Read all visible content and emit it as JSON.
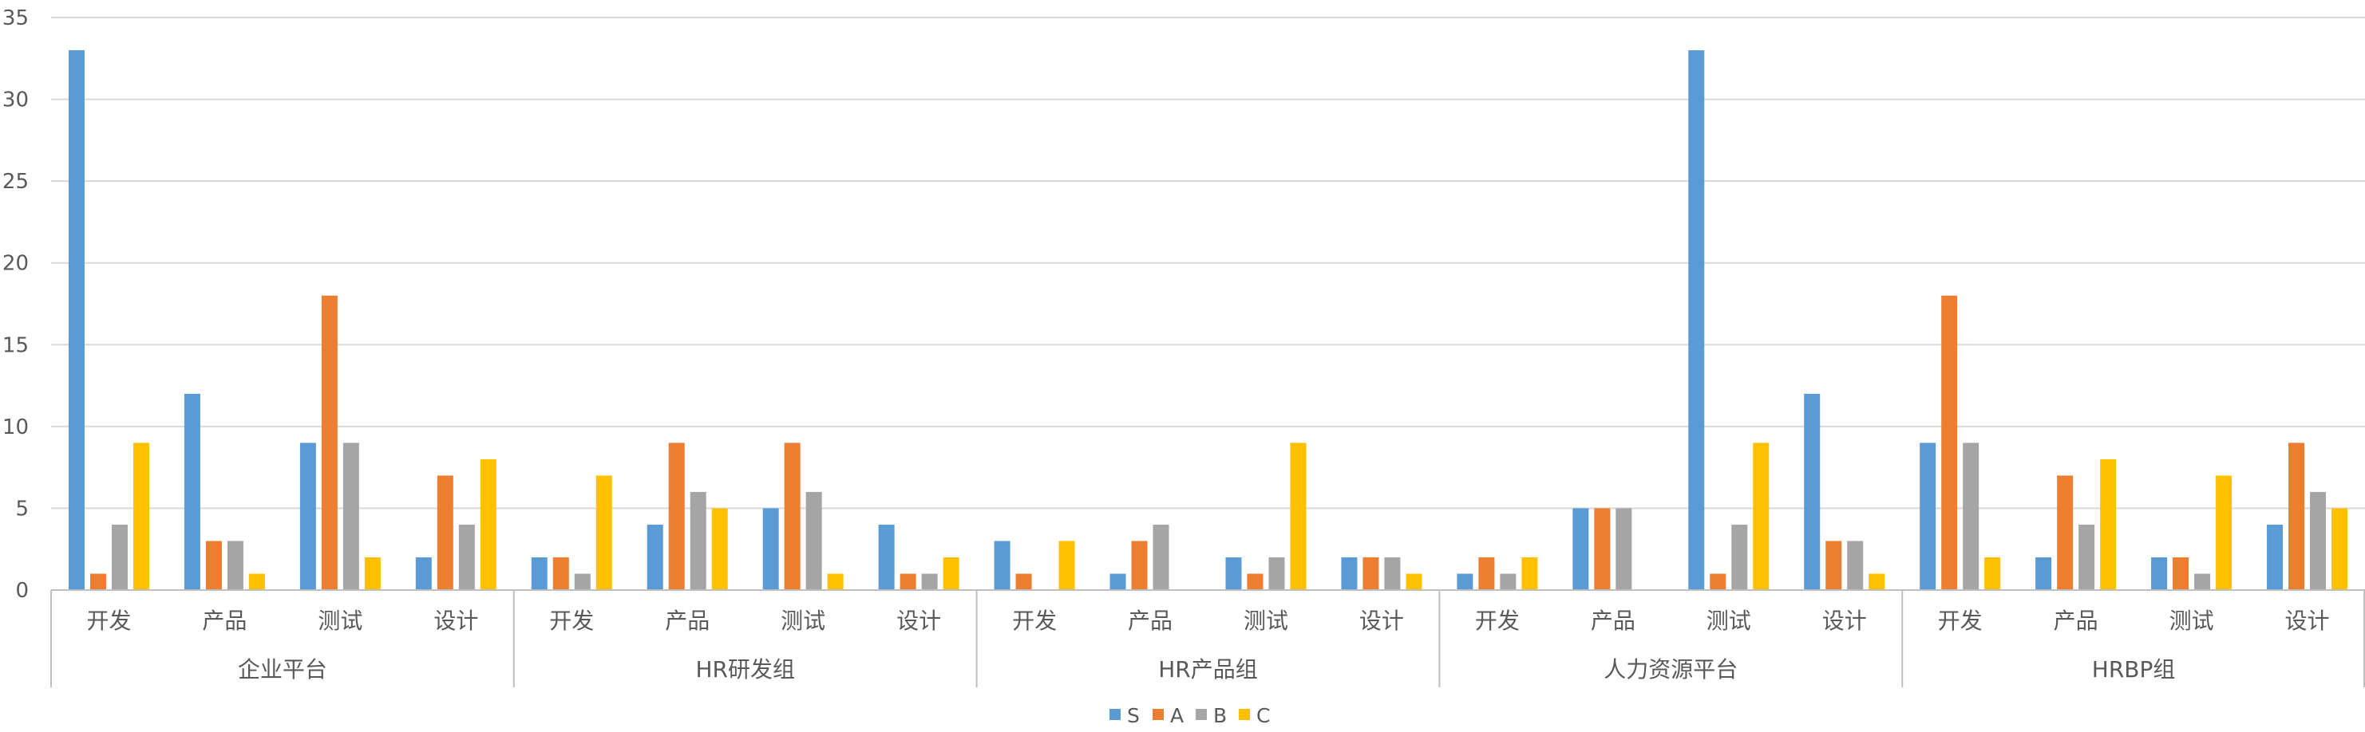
{
  "chart_data": {
    "type": "bar",
    "title": "",
    "xlabel": "",
    "ylabel": "",
    "ylim": [
      0,
      35
    ],
    "yticks": [
      0,
      5,
      10,
      15,
      20,
      25,
      30,
      35
    ],
    "grid": true,
    "legend_position": "bottom",
    "groups": [
      {
        "name": "企业平台",
        "categories": [
          "开发",
          "产品",
          "测试",
          "设计"
        ]
      },
      {
        "name": "HR研发组",
        "categories": [
          "开发",
          "产品",
          "测试",
          "设计"
        ]
      },
      {
        "name": "HR产品组",
        "categories": [
          "开发",
          "产品",
          "测试",
          "设计"
        ]
      },
      {
        "name": "人力资源平台",
        "categories": [
          "开发",
          "产品",
          "测试",
          "设计"
        ]
      },
      {
        "name": "HRBP组",
        "categories": [
          "开发",
          "产品",
          "测试",
          "设计"
        ]
      }
    ],
    "series": [
      {
        "name": "S",
        "color": "#5B9BD5",
        "values": [
          33,
          12,
          9,
          2,
          2,
          4,
          5,
          4,
          3,
          1,
          2,
          2,
          1,
          5,
          33,
          12,
          9,
          2,
          2,
          4
        ]
      },
      {
        "name": "A",
        "color": "#ED7D31",
        "values": [
          1,
          3,
          18,
          7,
          2,
          9,
          9,
          1,
          1,
          3,
          1,
          2,
          2,
          5,
          1,
          3,
          18,
          7,
          2,
          9
        ]
      },
      {
        "name": "B",
        "color": "#A5A5A5",
        "values": [
          4,
          3,
          9,
          4,
          1,
          6,
          6,
          1,
          0,
          4,
          2,
          2,
          1,
          5,
          4,
          3,
          9,
          4,
          1,
          6
        ]
      },
      {
        "name": "C",
        "color": "#FFC000",
        "values": [
          9,
          1,
          2,
          8,
          7,
          5,
          1,
          2,
          3,
          0,
          9,
          1,
          2,
          0,
          9,
          1,
          2,
          8,
          7,
          5
        ]
      }
    ]
  }
}
